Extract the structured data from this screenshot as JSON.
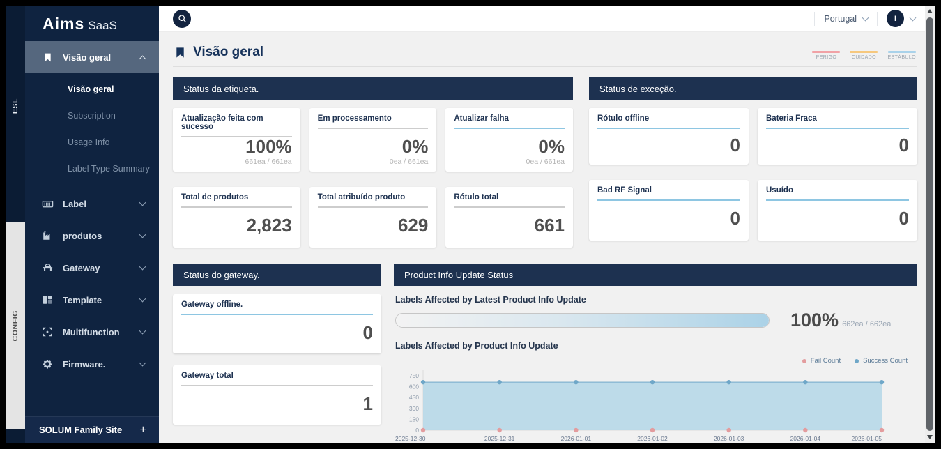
{
  "brand": {
    "name": "Aims",
    "suffix": "SaaS"
  },
  "rail": {
    "tabs": [
      {
        "label": "ESL",
        "active": true
      },
      {
        "label": "CONFIG",
        "active": false
      }
    ]
  },
  "sidebar": {
    "menu": [
      {
        "label": "Visão geral",
        "icon": "bookmark-icon",
        "expanded": true,
        "children": [
          {
            "label": "Visão geral",
            "active": true
          },
          {
            "label": "Subscription",
            "active": false
          },
          {
            "label": "Usage Info",
            "active": false
          },
          {
            "label": "Label Type Summary",
            "active": false
          }
        ]
      },
      {
        "label": "Label",
        "icon": "label-icon"
      },
      {
        "label": "produtos",
        "icon": "products-icon"
      },
      {
        "label": "Gateway",
        "icon": "gateway-icon"
      },
      {
        "label": "Template",
        "icon": "template-icon"
      },
      {
        "label": "Multifunction",
        "icon": "multifunction-icon"
      },
      {
        "label": "Firmware.",
        "icon": "firmware-icon"
      }
    ],
    "footer": {
      "label": "SOLUM Family Site",
      "action": "+"
    }
  },
  "topbar": {
    "region": "Portugal",
    "avatar_initial": "I"
  },
  "page": {
    "title": "Visão geral",
    "status_legend": [
      {
        "label": "PERIGO",
        "color": "#f1a2a6"
      },
      {
        "label": "CUIDADO",
        "color": "#f6c87e"
      },
      {
        "label": "ESTÁBULO",
        "color": "#a9d2ea"
      }
    ]
  },
  "sections": {
    "label_status": {
      "title": "Status da etiqueta.",
      "cards": [
        {
          "title": "Atualização feita com sucesso",
          "value": "100%",
          "sub": "661ea / 661ea",
          "accent": "gray"
        },
        {
          "title": "Em processamento",
          "value": "0%",
          "sub": "0ea / 661ea",
          "accent": "gray"
        },
        {
          "title": "Atualizar falha",
          "value": "0%",
          "sub": "0ea / 661ea",
          "accent": "blue"
        },
        {
          "title": "Total de produtos",
          "value": "2,823",
          "accent": "gray"
        },
        {
          "title": "Total atribuído produto",
          "value": "629",
          "accent": "gray"
        },
        {
          "title": "Rótulo total",
          "value": "661",
          "accent": "gray"
        }
      ]
    },
    "exception_status": {
      "title": "Status de exceção.",
      "cards": [
        {
          "title": "Rótulo offline",
          "value": "0",
          "accent": "blue"
        },
        {
          "title": "Bateria Fraca",
          "value": "0",
          "accent": "blue"
        },
        {
          "title": "Bad RF Signal",
          "value": "0",
          "accent": "blue"
        },
        {
          "title": "Usuído",
          "value": "0",
          "accent": "blue"
        }
      ]
    },
    "gateway_status": {
      "title": "Status do gateway.",
      "cards": [
        {
          "title": "Gateway offline.",
          "value": "0",
          "accent": "blue"
        },
        {
          "title": "Gateway total",
          "value": "1",
          "accent": "gray"
        }
      ]
    },
    "product_update": {
      "title": "Product Info Update Status",
      "latest_label": "Labels Affected by Latest Product Info Update",
      "progress": {
        "percent": "100%",
        "detail": "662ea / 662ea",
        "value": 100
      },
      "history_label": "Labels Affected by Product Info Update"
    }
  },
  "chart_data": {
    "type": "area",
    "title": "Labels Affected by Product Info Update",
    "x": [
      "2025-12-30",
      "2025-12-31",
      "2026-01-01",
      "2026-01-02",
      "2026-01-03",
      "2026-01-04",
      "2026-01-05"
    ],
    "series": [
      {
        "name": "Fail Count",
        "values": [
          0,
          0,
          0,
          0,
          0,
          0,
          0
        ],
        "color": "#e39c9e"
      },
      {
        "name": "Success Count",
        "values": [
          662,
          662,
          662,
          662,
          662,
          662,
          662
        ],
        "color": "#6fa7c8",
        "fill": "#b7d8e8"
      }
    ],
    "ylim": [
      0,
      750
    ],
    "yticks": [
      0,
      150,
      300,
      450,
      600,
      750
    ],
    "legend_position": "top-right",
    "grid": false
  }
}
